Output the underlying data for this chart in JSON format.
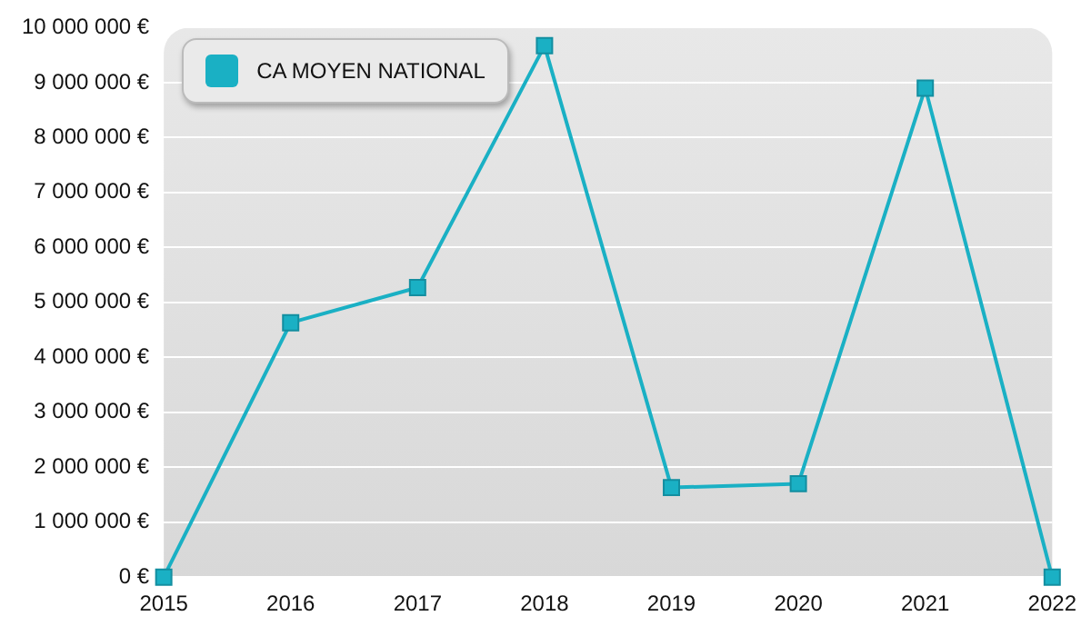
{
  "chart_data": {
    "type": "line",
    "categories": [
      "2015",
      "2016",
      "2017",
      "2018",
      "2019",
      "2020",
      "2021",
      "2022"
    ],
    "series": [
      {
        "name": "CA MOYEN NATIONAL",
        "color": "#1ab0c4",
        "values": [
          0,
          4630000,
          5270000,
          9670000,
          1630000,
          1700000,
          8900000,
          0
        ]
      }
    ],
    "ylim": [
      0,
      10000000
    ],
    "yticks": [
      {
        "value": 0,
        "label": "0 €"
      },
      {
        "value": 1000000,
        "label": "1 000 000 €"
      },
      {
        "value": 2000000,
        "label": "2 000 000 €"
      },
      {
        "value": 3000000,
        "label": "3 000 000 €"
      },
      {
        "value": 4000000,
        "label": "4 000 000 €"
      },
      {
        "value": 5000000,
        "label": "5 000 000 €"
      },
      {
        "value": 6000000,
        "label": "6 000 000 €"
      },
      {
        "value": 7000000,
        "label": "7 000 000 €"
      },
      {
        "value": 8000000,
        "label": "8 000 000 €"
      },
      {
        "value": 9000000,
        "label": "9 000 000 €"
      },
      {
        "value": 10000000,
        "label": "10 000 000 €"
      }
    ],
    "grid": "y",
    "legend": "top left",
    "marker": "square",
    "line_style": "solid"
  }
}
